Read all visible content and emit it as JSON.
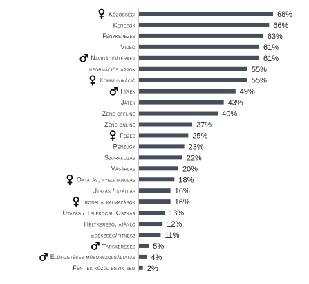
{
  "chart_data": {
    "type": "bar",
    "orientation": "horizontal",
    "categories": [
      "Közösségi",
      "Keresők",
      "Fényképezés",
      "Videó",
      "Navigáció/térkép",
      "Információs appok",
      "Kommunikáció",
      "Hírek",
      "Játék",
      "Zene offline",
      "Zene online",
      "Főzés",
      "Pénzügy",
      "Szórakozás",
      "Vásárlás",
      "Oktatás, nyelvtanulás",
      "Utazás / szállás",
      "Irodai alkalmazások",
      "Utazás / Telekocsi, Oszkár",
      "Helykereső, ajánló",
      "Egészség/fitnesz",
      "Társkeresés",
      "Előfizetéses műsorszolgáltatás",
      "Fentiek közül egyik sem"
    ],
    "values": [
      68,
      66,
      63,
      61,
      61,
      55,
      55,
      49,
      43,
      40,
      27,
      25,
      23,
      22,
      20,
      18,
      16,
      16,
      13,
      12,
      11,
      5,
      4,
      2
    ],
    "value_labels": [
      "68%",
      "66%",
      "63%",
      "61%",
      "61%",
      "55%",
      "55%",
      "49%",
      "43%",
      "40%",
      "27%",
      "25%",
      "23%",
      "22%",
      "20%",
      "18%",
      "16%",
      "16%",
      "13%",
      "12%",
      "11%",
      "5%",
      "4%",
      "2%"
    ],
    "markers": [
      "female",
      "",
      "",
      "",
      "male",
      "",
      "female",
      "male",
      "",
      "",
      "",
      "female",
      "",
      "",
      "",
      "female",
      "",
      "female",
      "",
      "",
      "",
      "male",
      "male",
      ""
    ],
    "xlim": [
      0,
      100
    ],
    "grid": false,
    "legend": "none",
    "bar_color": "#454e5b",
    "title": "",
    "xlabel": "",
    "ylabel": ""
  }
}
